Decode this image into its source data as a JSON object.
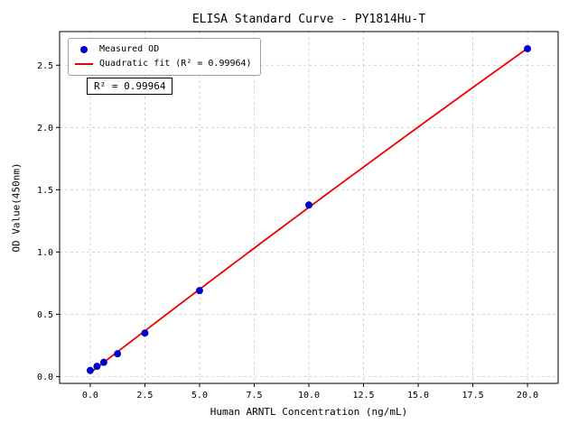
{
  "chart_data": {
    "type": "scatter",
    "title": "ELISA Standard Curve - PY1814Hu-T",
    "xlabel": "Human ARNTL Concentration (ng/mL)",
    "ylabel": "OD Value(450nm)",
    "x": [
      0,
      0.31,
      0.62,
      1.25,
      2.5,
      5,
      10,
      20
    ],
    "y": [
      0.049,
      0.082,
      0.114,
      0.183,
      0.349,
      0.69,
      1.377,
      2.632
    ],
    "series": [
      {
        "name": "Measured OD",
        "kind": "scatter",
        "color": "#0000cd"
      },
      {
        "name": "Quadratic fit (R² = 0.99964)",
        "kind": "quadratic-fit-line",
        "color": "#ee0000"
      }
    ],
    "annotation": "R² = 0.99964",
    "xlim": [
      -1.4,
      21.4
    ],
    "ylim": [
      -0.055,
      2.77
    ],
    "x_ticks": [
      0,
      2.5,
      5,
      7.5,
      10,
      12.5,
      15,
      17.5,
      20
    ],
    "x_tick_labels": [
      "0.0",
      "2.5",
      "5.0",
      "7.5",
      "10.0",
      "12.5",
      "15.0",
      "17.5",
      "20.0"
    ],
    "y_ticks": [
      0,
      0.5,
      1,
      1.5,
      2,
      2.5
    ],
    "y_tick_labels": [
      "0.0",
      "0.5",
      "1.0",
      "1.5",
      "2.0",
      "2.5"
    ],
    "grid": true,
    "grid_color": "#c9c9c9",
    "axis_color": "#000000",
    "legend_position": "upper-left"
  }
}
